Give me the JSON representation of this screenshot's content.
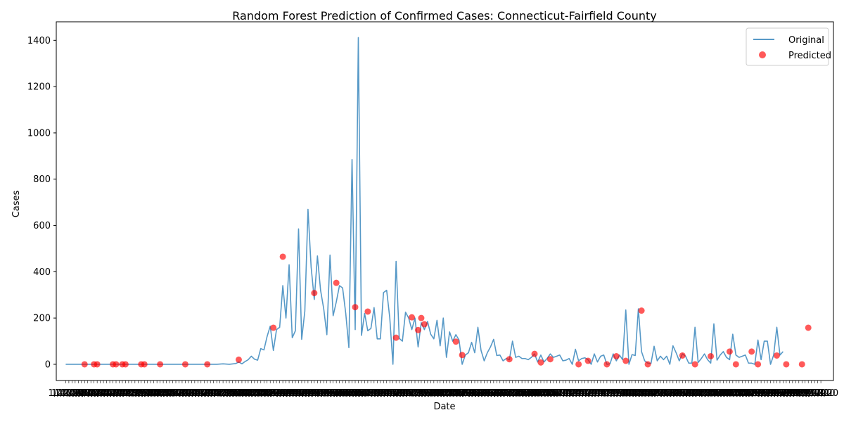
{
  "chart_data": {
    "type": "line",
    "title": "Random Forest Prediction of Confirmed Cases: Connecticut-Fairfield County",
    "xlabel": "Date",
    "ylabel": "Cases",
    "ylim": [
      -70,
      1480
    ],
    "yticks": [
      0,
      200,
      400,
      600,
      800,
      1000,
      1200,
      1400
    ],
    "xlim": [
      -3,
      244
    ],
    "x_tick_note": "one date tick label per day; labels overlap into an unreadable dark band",
    "x_tick_labels_sample": [
      "1/22/20",
      "1/23/20",
      "1/24/20"
    ],
    "legend": {
      "position": "top-right",
      "entries": [
        "Original",
        "Predicted"
      ]
    },
    "colors": {
      "original": "#1f77b4",
      "predicted": "#ff0000"
    },
    "series": [
      {
        "name": "Original",
        "kind": "line",
        "points": [
          [
            0,
            0
          ],
          [
            48,
            0
          ],
          [
            50,
            2
          ],
          [
            52,
            0
          ],
          [
            54,
            3
          ],
          [
            55,
            10
          ],
          [
            56,
            2
          ],
          [
            57,
            12
          ],
          [
            58,
            20
          ],
          [
            59,
            35
          ],
          [
            60,
            22
          ],
          [
            61,
            18
          ],
          [
            62,
            68
          ],
          [
            63,
            62
          ],
          [
            64,
            120
          ],
          [
            65,
            165
          ],
          [
            66,
            60
          ],
          [
            67,
            150
          ],
          [
            68,
            160
          ],
          [
            69,
            340
          ],
          [
            70,
            200
          ],
          [
            71,
            430
          ],
          [
            72,
            115
          ],
          [
            73,
            145
          ],
          [
            74,
            585
          ],
          [
            75,
            108
          ],
          [
            76,
            230
          ],
          [
            77,
            670
          ],
          [
            78,
            420
          ],
          [
            79,
            280
          ],
          [
            80,
            468
          ],
          [
            81,
            320
          ],
          [
            82,
            240
          ],
          [
            83,
            128
          ],
          [
            84,
            472
          ],
          [
            85,
            210
          ],
          [
            86,
            270
          ],
          [
            87,
            340
          ],
          [
            88,
            330
          ],
          [
            89,
            220
          ],
          [
            90,
            72
          ],
          [
            91,
            885
          ],
          [
            92,
            150
          ],
          [
            93,
            1412
          ],
          [
            94,
            125
          ],
          [
            95,
            220
          ],
          [
            96,
            145
          ],
          [
            97,
            155
          ],
          [
            98,
            245
          ],
          [
            99,
            110
          ],
          [
            100,
            110
          ],
          [
            101,
            310
          ],
          [
            102,
            320
          ],
          [
            103,
            200
          ],
          [
            104,
            0
          ],
          [
            105,
            445
          ],
          [
            106,
            112
          ],
          [
            107,
            100
          ],
          [
            108,
            225
          ],
          [
            109,
            200
          ],
          [
            110,
            150
          ],
          [
            111,
            200
          ],
          [
            112,
            75
          ],
          [
            113,
            180
          ],
          [
            114,
            150
          ],
          [
            115,
            185
          ],
          [
            116,
            130
          ],
          [
            117,
            110
          ],
          [
            118,
            190
          ],
          [
            119,
            80
          ],
          [
            120,
            200
          ],
          [
            121,
            30
          ],
          [
            122,
            140
          ],
          [
            123,
            100
          ],
          [
            124,
            128
          ],
          [
            125,
            105
          ],
          [
            126,
            0
          ],
          [
            127,
            40
          ],
          [
            128,
            50
          ],
          [
            129,
            95
          ],
          [
            130,
            50
          ],
          [
            131,
            160
          ],
          [
            132,
            60
          ],
          [
            133,
            15
          ],
          [
            134,
            50
          ],
          [
            135,
            75
          ],
          [
            136,
            108
          ],
          [
            137,
            38
          ],
          [
            138,
            40
          ],
          [
            139,
            15
          ],
          [
            140,
            25
          ],
          [
            141,
            20
          ],
          [
            142,
            100
          ],
          [
            143,
            30
          ],
          [
            144,
            35
          ],
          [
            145,
            25
          ],
          [
            146,
            25
          ],
          [
            147,
            20
          ],
          [
            148,
            30
          ],
          [
            149,
            45
          ],
          [
            150,
            10
          ],
          [
            151,
            40
          ],
          [
            152,
            10
          ],
          [
            153,
            25
          ],
          [
            154,
            45
          ],
          [
            155,
            30
          ],
          [
            156,
            35
          ],
          [
            157,
            40
          ],
          [
            158,
            15
          ],
          [
            159,
            18
          ],
          [
            160,
            25
          ],
          [
            161,
            0
          ],
          [
            162,
            65
          ],
          [
            163,
            15
          ],
          [
            164,
            25
          ],
          [
            165,
            28
          ],
          [
            166,
            20
          ],
          [
            167,
            0
          ],
          [
            168,
            45
          ],
          [
            169,
            10
          ],
          [
            170,
            35
          ],
          [
            171,
            40
          ],
          [
            172,
            0
          ],
          [
            173,
            2
          ],
          [
            174,
            45
          ],
          [
            175,
            15
          ],
          [
            176,
            40
          ],
          [
            177,
            20
          ],
          [
            178,
            235
          ],
          [
            179,
            0
          ],
          [
            180,
            42
          ],
          [
            181,
            38
          ],
          [
            182,
            240
          ],
          [
            183,
            55
          ],
          [
            184,
            15
          ],
          [
            185,
            5
          ],
          [
            186,
            3
          ],
          [
            187,
            78
          ],
          [
            188,
            15
          ],
          [
            189,
            35
          ],
          [
            190,
            20
          ],
          [
            191,
            35
          ],
          [
            192,
            0
          ],
          [
            193,
            80
          ],
          [
            194,
            50
          ],
          [
            195,
            15
          ],
          [
            196,
            45
          ],
          [
            197,
            35
          ],
          [
            198,
            5
          ],
          [
            199,
            5
          ],
          [
            200,
            160
          ],
          [
            201,
            8
          ],
          [
            202,
            25
          ],
          [
            203,
            45
          ],
          [
            204,
            20
          ],
          [
            205,
            5
          ],
          [
            206,
            175
          ],
          [
            207,
            18
          ],
          [
            208,
            40
          ],
          [
            209,
            55
          ],
          [
            210,
            30
          ],
          [
            211,
            20
          ],
          [
            212,
            130
          ],
          [
            213,
            40
          ],
          [
            214,
            30
          ],
          [
            215,
            35
          ],
          [
            216,
            40
          ],
          [
            217,
            5
          ],
          [
            218,
            5
          ],
          [
            219,
            0
          ],
          [
            220,
            105
          ],
          [
            221,
            20
          ],
          [
            222,
            100
          ],
          [
            223,
            100
          ],
          [
            224,
            0
          ],
          [
            225,
            40
          ],
          [
            226,
            160
          ],
          [
            227,
            40
          ],
          [
            228,
            55
          ]
        ]
      },
      {
        "name": "Predicted",
        "kind": "scatter",
        "points": [
          [
            6,
            0
          ],
          [
            9,
            0
          ],
          [
            10,
            0
          ],
          [
            15,
            0
          ],
          [
            16,
            0
          ],
          [
            18,
            0
          ],
          [
            19,
            0
          ],
          [
            24,
            0
          ],
          [
            25,
            0
          ],
          [
            30,
            0
          ],
          [
            38,
            0
          ],
          [
            45,
            0
          ],
          [
            55,
            20
          ],
          [
            66,
            158
          ],
          [
            69,
            465
          ],
          [
            79,
            308
          ],
          [
            86,
            352
          ],
          [
            92,
            247
          ],
          [
            96,
            228
          ],
          [
            105,
            115
          ],
          [
            110,
            203
          ],
          [
            112,
            148
          ],
          [
            113,
            200
          ],
          [
            114,
            173
          ],
          [
            124,
            98
          ],
          [
            126,
            40
          ],
          [
            141,
            22
          ],
          [
            149,
            45
          ],
          [
            151,
            8
          ],
          [
            154,
            22
          ],
          [
            163,
            0
          ],
          [
            166,
            15
          ],
          [
            172,
            0
          ],
          [
            175,
            35
          ],
          [
            178,
            15
          ],
          [
            183,
            232
          ],
          [
            185,
            0
          ],
          [
            196,
            38
          ],
          [
            200,
            0
          ],
          [
            205,
            35
          ],
          [
            211,
            55
          ],
          [
            213,
            0
          ],
          [
            218,
            55
          ],
          [
            220,
            0
          ],
          [
            226,
            38
          ],
          [
            229,
            0
          ],
          [
            234,
            0
          ],
          [
            236,
            158
          ]
        ]
      }
    ]
  }
}
